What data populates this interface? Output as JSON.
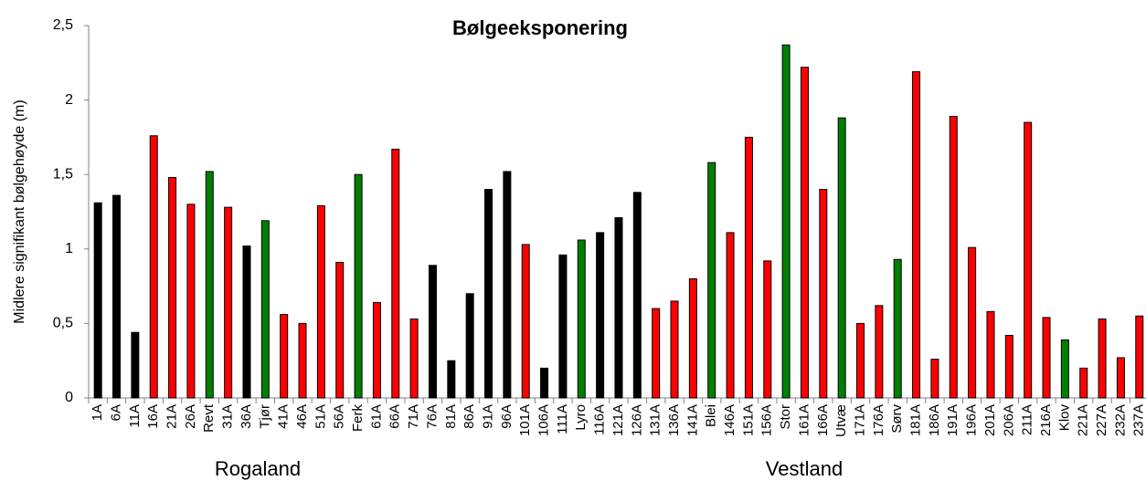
{
  "chart_data": {
    "type": "bar",
    "title": "Bølgeeksponering",
    "y_label": "Midlere signifikant bølgehøyde  (m)",
    "categories": [
      "1A",
      "6A",
      "11A",
      "16A",
      "21A",
      "26A",
      "Revt",
      "31A",
      "36A",
      "Tjør",
      "41A",
      "46A",
      "51A",
      "56A",
      "Ferk",
      "61A",
      "66A",
      "71A",
      "76A",
      "81A",
      "86A",
      "91A",
      "96A",
      "101A",
      "106A",
      "111A",
      "Lyro",
      "116A",
      "121A",
      "126A",
      "131A",
      "136A",
      "141A",
      "Blei",
      "146A",
      "151A",
      "156A",
      "Stor",
      "161A",
      "166A",
      "Utvæ",
      "171A",
      "176A",
      "Sørv",
      "181A",
      "186A",
      "191A",
      "196A",
      "201A",
      "206A",
      "211A",
      "216A",
      "Klov",
      "221A",
      "227A",
      "232A",
      "237A"
    ],
    "values": [
      1.31,
      1.36,
      0.44,
      1.76,
      1.48,
      1.3,
      1.52,
      1.28,
      1.02,
      1.19,
      0.56,
      0.5,
      1.29,
      0.91,
      1.5,
      0.64,
      1.67,
      0.53,
      0.89,
      0.25,
      0.7,
      1.4,
      1.52,
      1.03,
      0.2,
      0.96,
      1.06,
      1.11,
      1.21,
      1.38,
      0.6,
      0.65,
      0.8,
      1.58,
      1.11,
      1.75,
      0.92,
      2.37,
      2.22,
      1.4,
      1.88,
      0.5,
      0.62,
      0.93,
      2.19,
      0.26,
      1.89,
      1.01,
      0.58,
      0.42,
      1.85,
      0.54,
      0.39,
      0.2,
      0.53,
      0.27,
      0.55
    ],
    "colors": [
      "#000000",
      "#000000",
      "#000000",
      "#ff0000",
      "#ff0000",
      "#ff0000",
      "#008000",
      "#ff0000",
      "#000000",
      "#008000",
      "#ff0000",
      "#ff0000",
      "#ff0000",
      "#ff0000",
      "#008000",
      "#ff0000",
      "#ff0000",
      "#ff0000",
      "#000000",
      "#000000",
      "#000000",
      "#000000",
      "#000000",
      "#ff0000",
      "#000000",
      "#000000",
      "#008000",
      "#000000",
      "#000000",
      "#000000",
      "#ff0000",
      "#ff0000",
      "#ff0000",
      "#008000",
      "#ff0000",
      "#ff0000",
      "#ff0000",
      "#008000",
      "#ff0000",
      "#ff0000",
      "#008000",
      "#ff0000",
      "#ff0000",
      "#008000",
      "#ff0000",
      "#ff0000",
      "#ff0000",
      "#ff0000",
      "#ff0000",
      "#ff0000",
      "#ff0000",
      "#ff0000",
      "#008000",
      "#ff0000",
      "#ff0000",
      "#ff0000",
      "#ff0000"
    ],
    "ylim": [
      0,
      2.5
    ],
    "yticks": [
      0,
      {
        "value": 0.5,
        "label": "0,5"
      },
      1,
      {
        "value": 1.5,
        "label": "1,5"
      },
      2,
      {
        "value": 2.5,
        "label": "2,5"
      }
    ],
    "annotations": [
      "Rogaland",
      "Vestland"
    ]
  }
}
